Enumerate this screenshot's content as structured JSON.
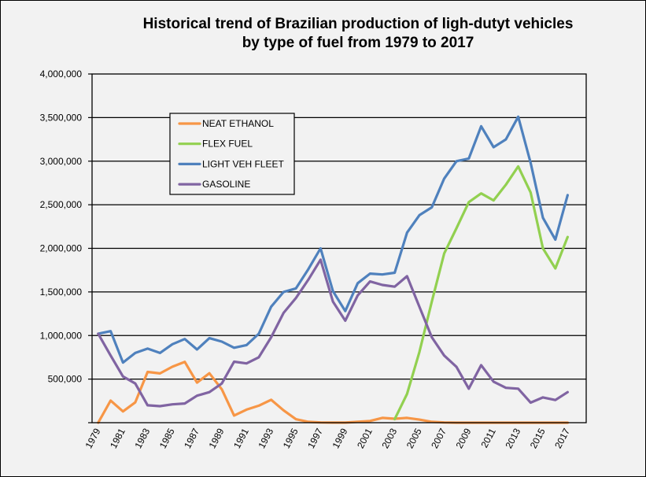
{
  "chart_data": {
    "type": "line",
    "title": [
      "Historical  trend of Brazilian  production  of ligh-dutyt  vehicles",
      "by type of fuel from 1979 to 2017"
    ],
    "xlabel": "",
    "ylabel": "",
    "ylim": [
      0,
      4000000
    ],
    "yticks": [
      0,
      500000,
      1000000,
      1500000,
      2000000,
      2500000,
      3000000,
      3500000,
      4000000
    ],
    "ytick_labels": [
      "",
      "500,000",
      "1,000,000",
      "1,500,000",
      "2,000,000",
      "2,500,000",
      "3,000,000",
      "3,500,000",
      "4,000,000"
    ],
    "grid": true,
    "legend_position": "upper-left inside plot",
    "x": [
      1979,
      1980,
      1981,
      1982,
      1983,
      1984,
      1985,
      1986,
      1987,
      1988,
      1989,
      1990,
      1991,
      1992,
      1993,
      1994,
      1995,
      1996,
      1997,
      1998,
      1999,
      2000,
      2001,
      2002,
      2003,
      2004,
      2005,
      2006,
      2007,
      2008,
      2009,
      2010,
      2011,
      2012,
      2013,
      2014,
      2015,
      2016,
      2017
    ],
    "xtick_labels": [
      "1979",
      "1981",
      "1983",
      "1985",
      "1987",
      "1989",
      "1991",
      "1993",
      "1995",
      "1997",
      "1999",
      "2001",
      "2003",
      "2005",
      "2007",
      "2009",
      "2011",
      "2013",
      "2015",
      "2017"
    ],
    "series": [
      {
        "name": "NEAT ETHANOL",
        "color": "#F79646",
        "values": [
          0,
          254000,
          129000,
          233000,
          582000,
          565000,
          642000,
          698000,
          460000,
          567000,
          383000,
          82000,
          150000,
          195000,
          263000,
          142000,
          40000,
          10000,
          3000,
          1000,
          1000,
          10000,
          20000,
          55000,
          45000,
          55000,
          35000,
          10000,
          3000,
          0,
          0,
          0,
          0,
          0,
          0,
          0,
          0,
          0,
          0
        ]
      },
      {
        "name": "FLEX FUEL",
        "color": "#92D050",
        "values": [
          null,
          null,
          null,
          null,
          null,
          null,
          null,
          null,
          null,
          null,
          null,
          null,
          null,
          null,
          null,
          null,
          null,
          null,
          null,
          null,
          null,
          null,
          null,
          null,
          40000,
          330000,
          810000,
          1390000,
          1940000,
          2230000,
          2530000,
          2630000,
          2550000,
          2730000,
          2940000,
          2640000,
          2000000,
          1770000,
          2130000
        ]
      },
      {
        "name": "LIGHT VEH FLEET",
        "color": "#4F81BD",
        "values": [
          1020000,
          1050000,
          690000,
          800000,
          850000,
          800000,
          900000,
          960000,
          840000,
          970000,
          930000,
          860000,
          890000,
          1020000,
          1330000,
          1500000,
          1540000,
          1760000,
          2000000,
          1510000,
          1280000,
          1600000,
          1710000,
          1700000,
          1720000,
          2180000,
          2380000,
          2470000,
          2800000,
          3000000,
          3030000,
          3400000,
          3160000,
          3250000,
          3510000,
          2980000,
          2350000,
          2100000,
          2610000
        ]
      },
      {
        "name": "GASOLINE",
        "color": "#8064A2",
        "values": [
          1020000,
          770000,
          530000,
          450000,
          200000,
          190000,
          210000,
          220000,
          310000,
          350000,
          450000,
          700000,
          680000,
          750000,
          980000,
          1260000,
          1430000,
          1640000,
          1870000,
          1390000,
          1170000,
          1460000,
          1620000,
          1580000,
          1560000,
          1680000,
          1330000,
          980000,
          770000,
          640000,
          390000,
          660000,
          470000,
          400000,
          390000,
          230000,
          290000,
          260000,
          350000
        ]
      }
    ]
  }
}
